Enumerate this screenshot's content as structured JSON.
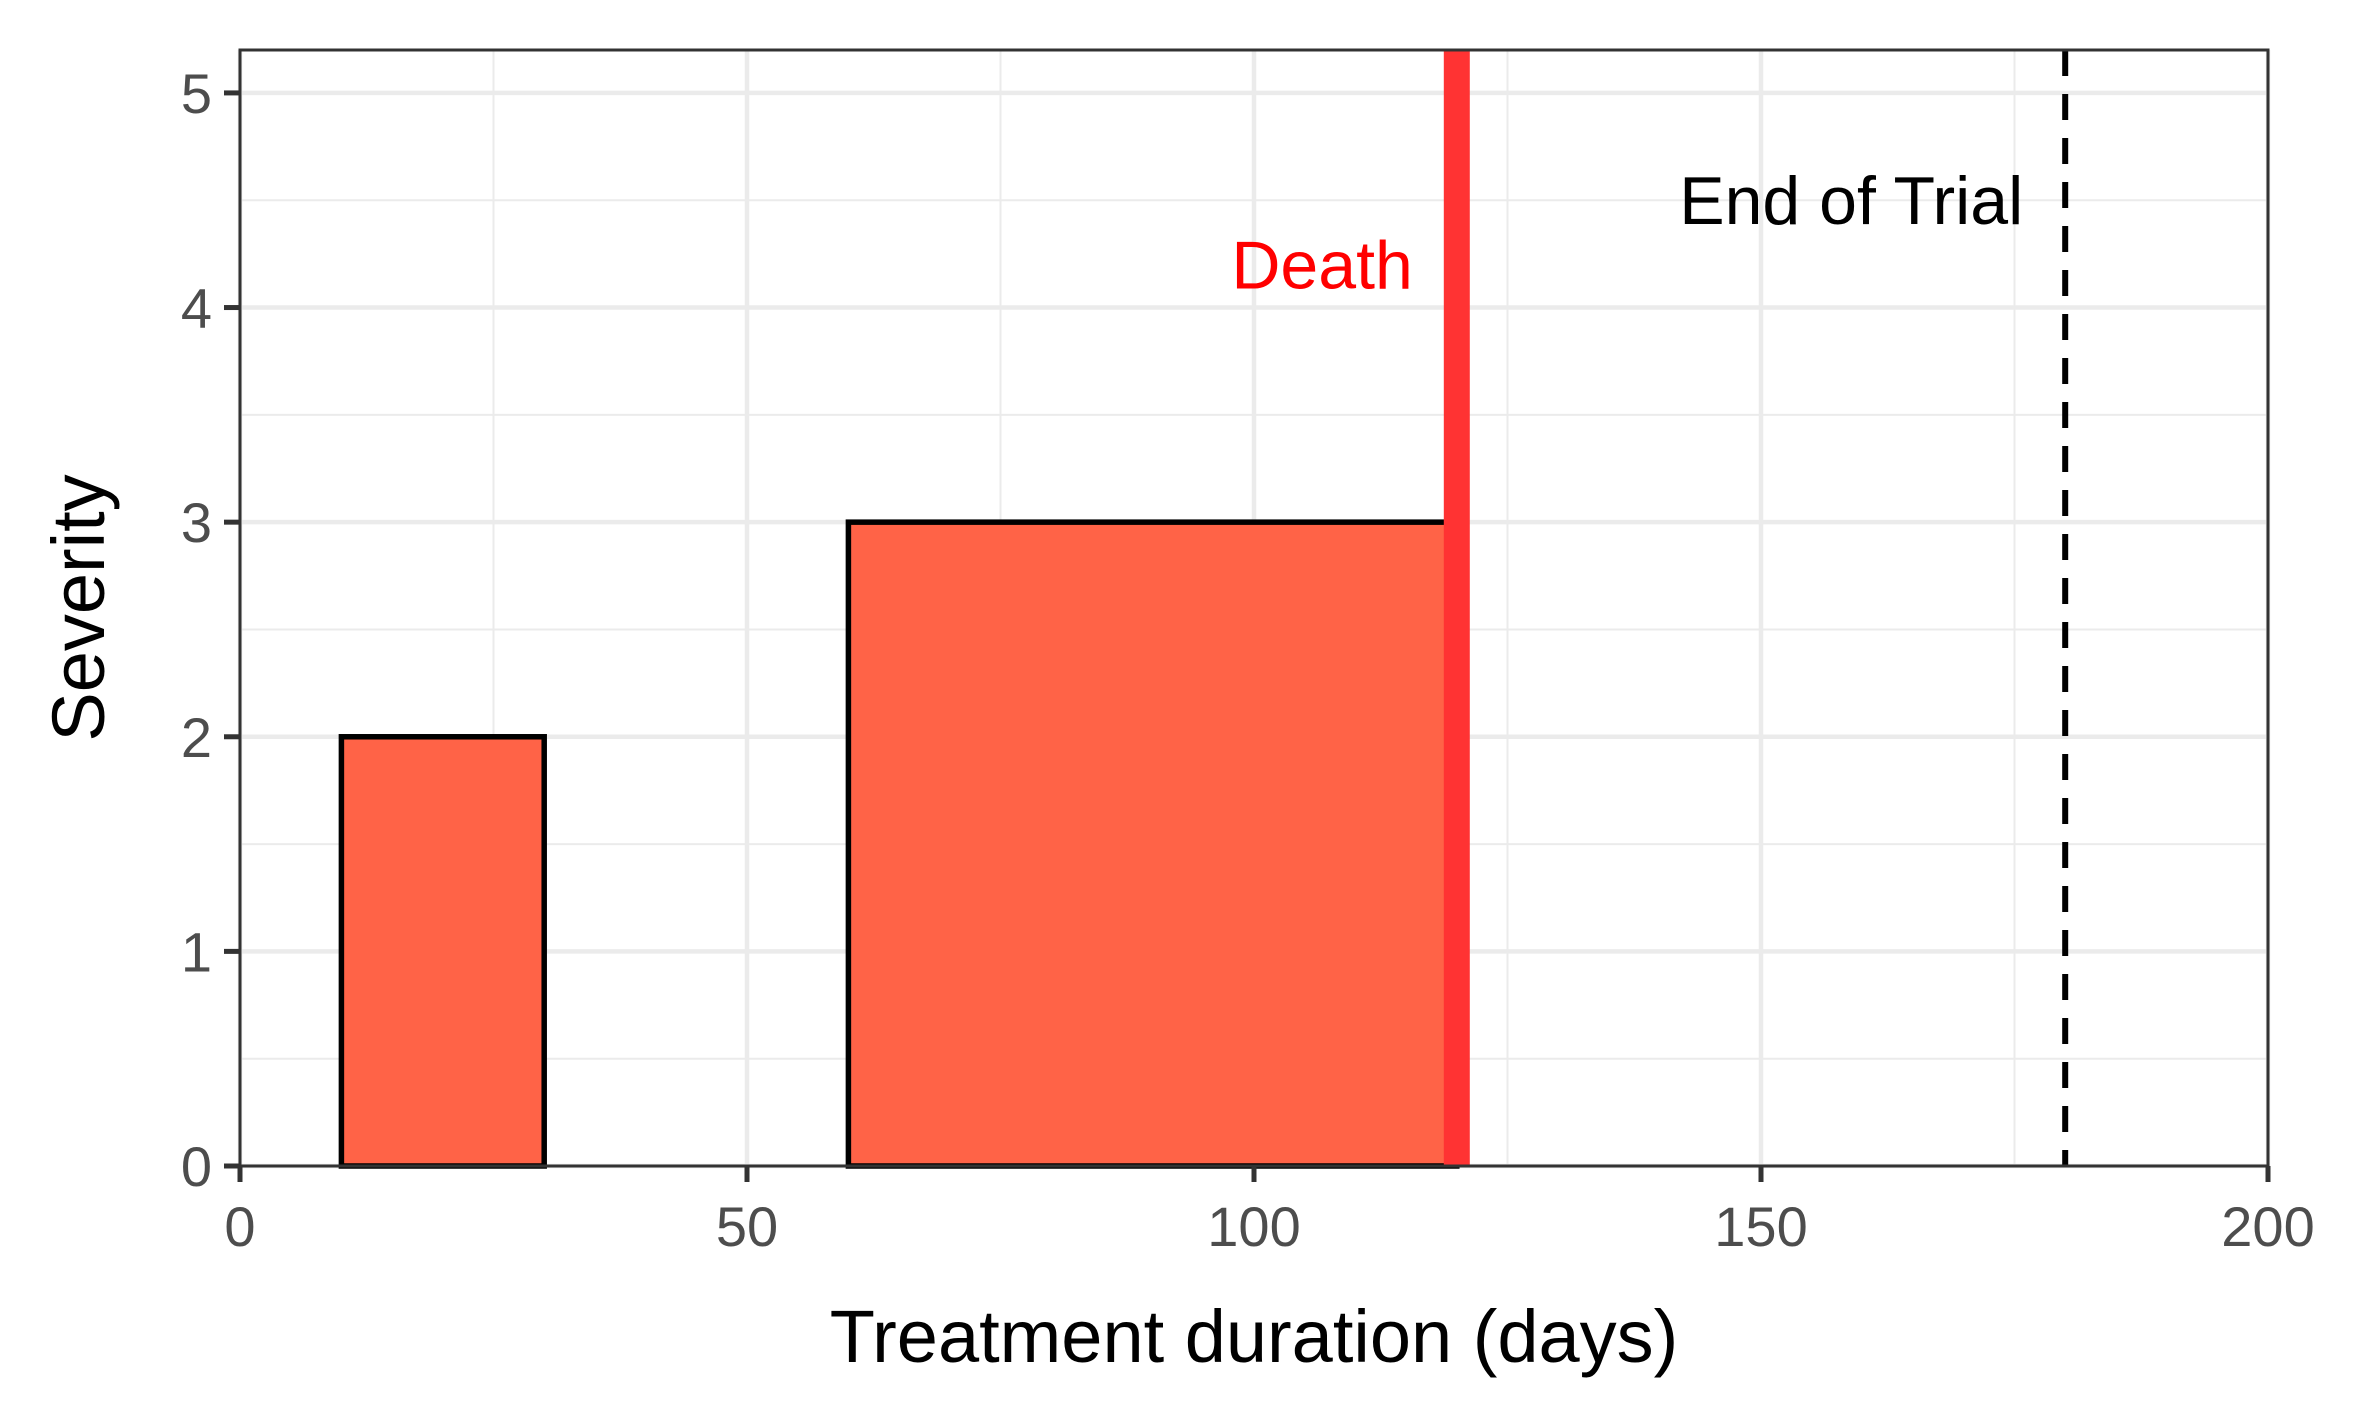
{
  "chart_data": {
    "type": "bar",
    "xlabel": "Treatment duration (days)",
    "ylabel": "Severity",
    "xlim": [
      0,
      200
    ],
    "ylim": [
      0,
      5.2
    ],
    "x_ticks": [
      0,
      50,
      100,
      150,
      200
    ],
    "x_tick_labels": [
      "0",
      "50",
      "100",
      "150",
      "200"
    ],
    "y_ticks": [
      0,
      1,
      2,
      3,
      4,
      5
    ],
    "y_tick_labels": [
      "0",
      "1",
      "2",
      "3",
      "4",
      "5"
    ],
    "grid": true,
    "bars": [
      {
        "x_start": 10,
        "x_end": 30,
        "value": 2
      },
      {
        "x_start": 60,
        "x_end": 120,
        "value": 3
      }
    ],
    "bar_color": "#ff6347",
    "bar_edge_color": "#000000",
    "reference_lines": [
      {
        "label": "Death",
        "x": 120,
        "color": "#ff3333",
        "label_color": "#ff0000",
        "style": "solid",
        "label_y": 4.2
      },
      {
        "label": "End of Trial",
        "x": 180,
        "color": "#000000",
        "label_color": "#000000",
        "style": "dashed",
        "label_y": 4.5
      }
    ]
  }
}
